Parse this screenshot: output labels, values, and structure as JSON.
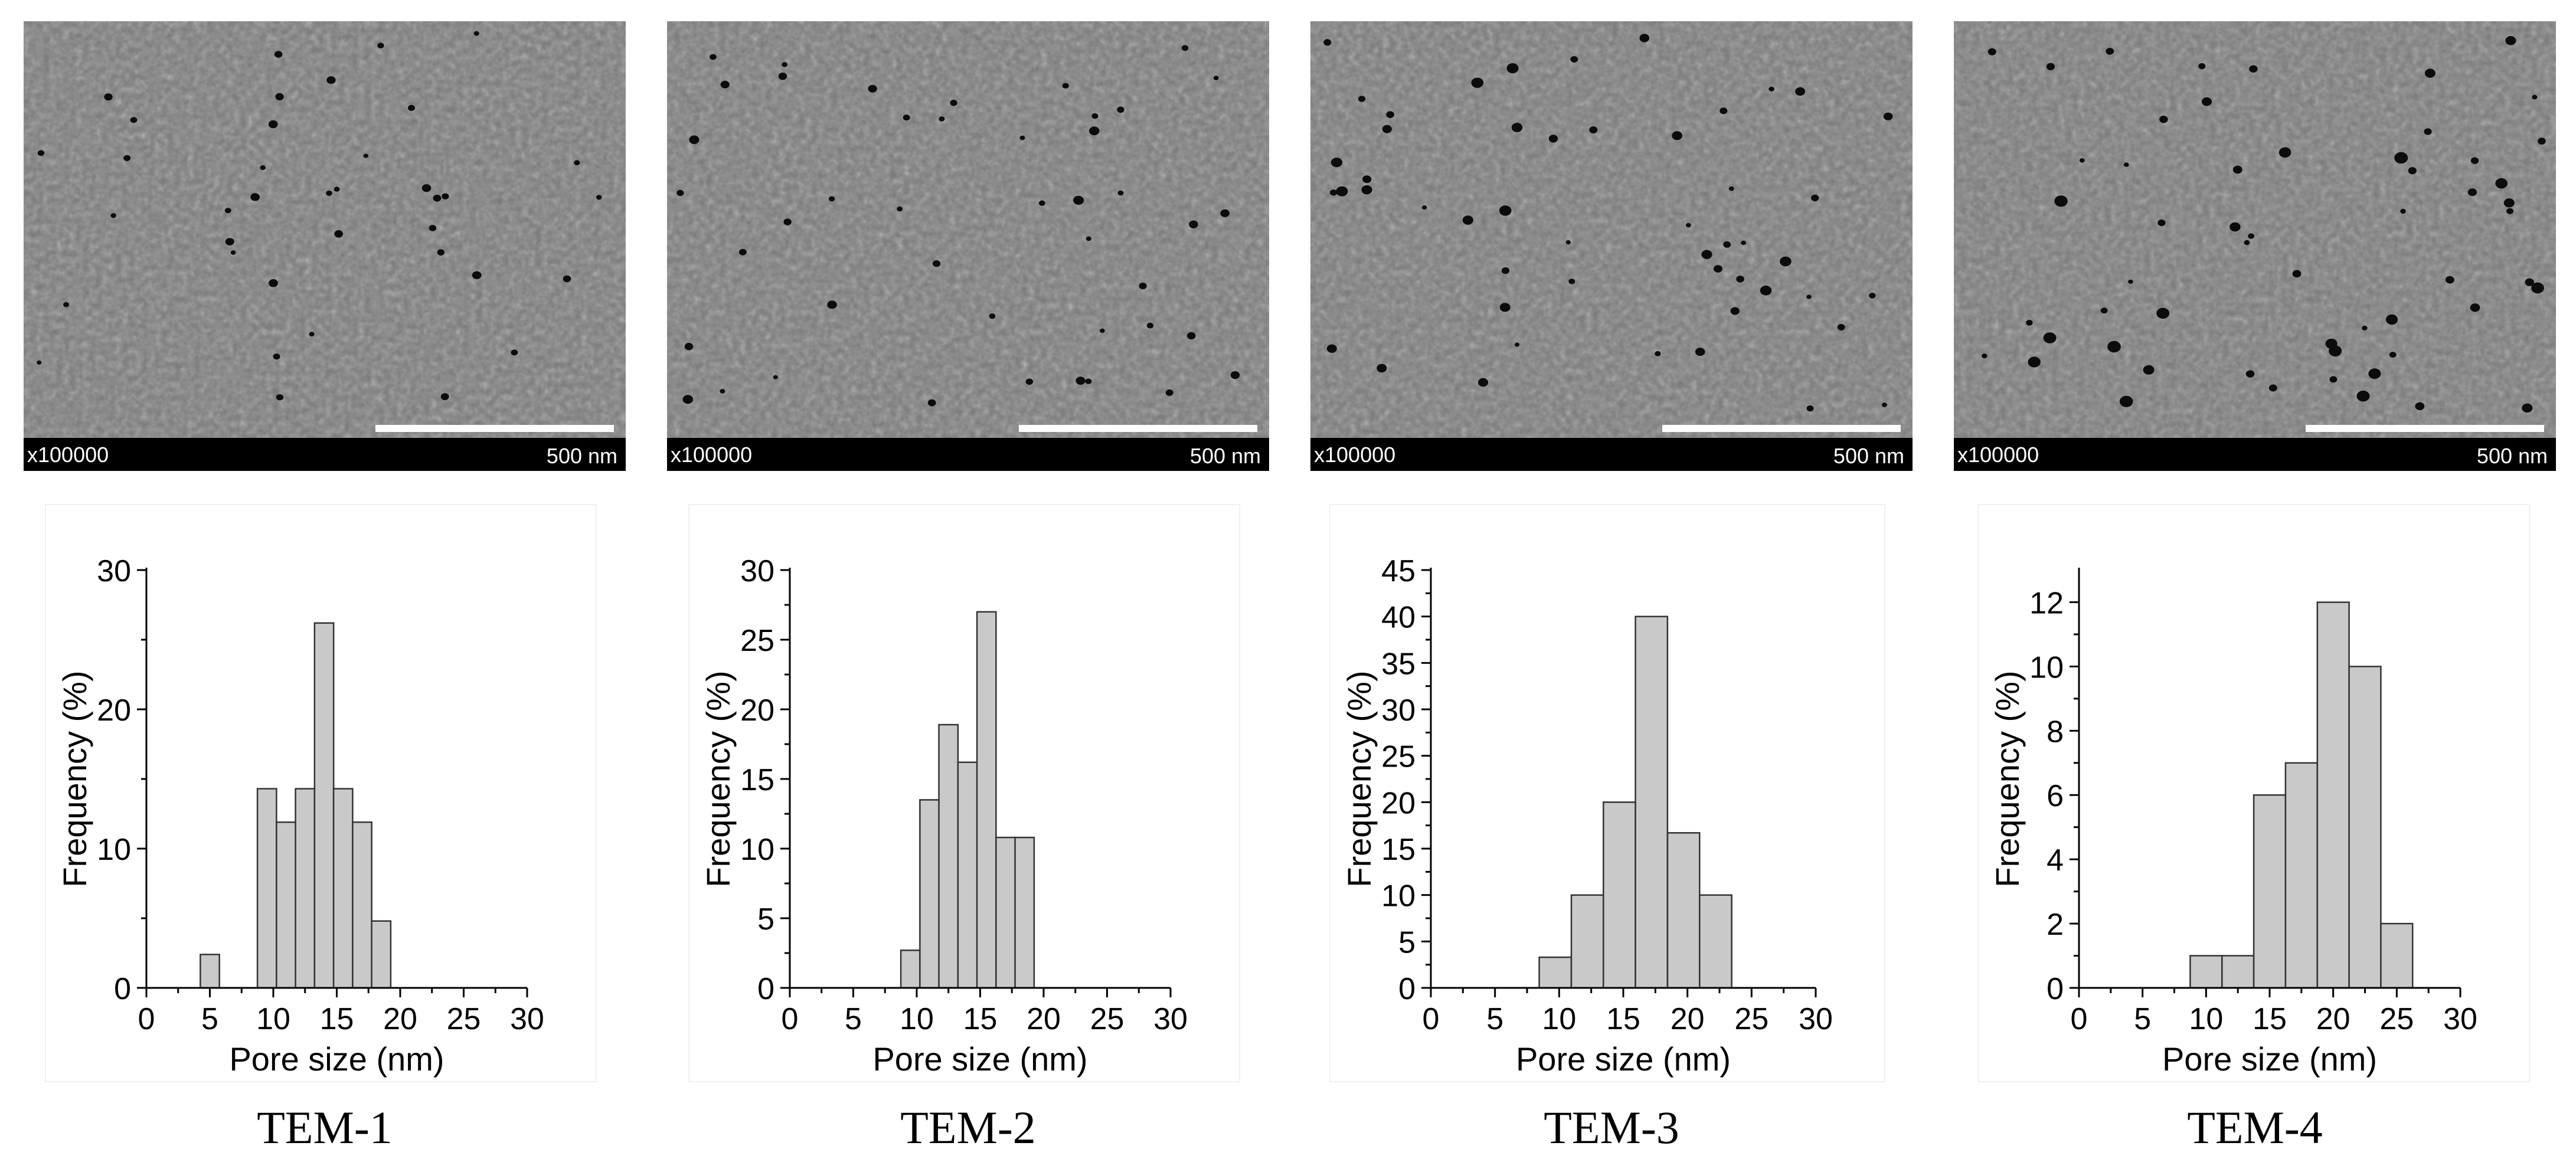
{
  "panels": [
    {
      "caption": "TEM-1",
      "magnification": "x100000",
      "scale_label": "500 nm"
    },
    {
      "caption": "TEM-2",
      "magnification": "x100000",
      "scale_label": "500 nm"
    },
    {
      "caption": "TEM-3",
      "magnification": "x100000",
      "scale_label": "500 nm"
    },
    {
      "caption": "TEM-4",
      "magnification": "x100000",
      "scale_label": "500 nm"
    }
  ],
  "colors": {
    "bar_fill": "#c9c9c9",
    "bar_stroke": "#333333",
    "axis": "#000000"
  },
  "chart_data": [
    {
      "type": "bar",
      "title": "",
      "xlabel": "Pore size (nm)",
      "ylabel": "Frequency (%)",
      "xlim": [
        0,
        30
      ],
      "ylim": [
        0,
        30
      ],
      "xticks": [
        0,
        5,
        10,
        15,
        20,
        25,
        30
      ],
      "yticks": [
        0,
        10,
        20,
        30
      ],
      "bin_width": 1.5,
      "bins": [
        {
          "x": 5,
          "y": 2.4
        },
        {
          "x": 9.5,
          "y": 14.3
        },
        {
          "x": 11,
          "y": 11.9
        },
        {
          "x": 12.5,
          "y": 14.3
        },
        {
          "x": 14,
          "y": 26.2
        },
        {
          "x": 15.5,
          "y": 14.3
        },
        {
          "x": 17,
          "y": 11.9
        },
        {
          "x": 18.5,
          "y": 4.8
        }
      ]
    },
    {
      "type": "bar",
      "title": "",
      "xlabel": "Pore size (nm)",
      "ylabel": "Frequency (%)",
      "xlim": [
        0,
        30
      ],
      "ylim": [
        0,
        30
      ],
      "xticks": [
        0,
        5,
        10,
        15,
        20,
        25,
        30
      ],
      "yticks": [
        0,
        5,
        10,
        15,
        20,
        25,
        30
      ],
      "bin_width": 1.5,
      "bins": [
        {
          "x": 9.5,
          "y": 2.7
        },
        {
          "x": 11,
          "y": 13.5
        },
        {
          "x": 12.5,
          "y": 18.9
        },
        {
          "x": 14,
          "y": 16.2
        },
        {
          "x": 15.5,
          "y": 27
        },
        {
          "x": 17,
          "y": 10.8
        },
        {
          "x": 18.5,
          "y": 10.8
        }
      ]
    },
    {
      "type": "bar",
      "title": "",
      "xlabel": "Pore size (nm)",
      "ylabel": "Frequency (%)",
      "xlim": [
        0,
        30
      ],
      "ylim": [
        0,
        45
      ],
      "xticks": [
        0,
        5,
        10,
        15,
        20,
        25,
        30
      ],
      "yticks": [
        0,
        5,
        10,
        15,
        20,
        25,
        30,
        35,
        40,
        45
      ],
      "bin_width": 2.5,
      "bins": [
        {
          "x": 9.7,
          "y": 3.3
        },
        {
          "x": 12.2,
          "y": 10
        },
        {
          "x": 14.7,
          "y": 20
        },
        {
          "x": 17.2,
          "y": 40
        },
        {
          "x": 19.7,
          "y": 16.7
        },
        {
          "x": 22.2,
          "y": 10
        }
      ]
    },
    {
      "type": "bar",
      "title": "",
      "xlabel": "Pore size (nm)",
      "ylabel": "Frequency (%)",
      "xlim": [
        0,
        30
      ],
      "ylim": [
        0,
        13
      ],
      "xticks": [
        0,
        5,
        10,
        15,
        20,
        25,
        30
      ],
      "yticks": [
        0,
        2,
        4,
        6,
        8,
        10,
        12
      ],
      "bin_width": 2.5,
      "bins": [
        {
          "x": 10,
          "y": 1
        },
        {
          "x": 12.5,
          "y": 1
        },
        {
          "x": 15,
          "y": 6
        },
        {
          "x": 17.5,
          "y": 7
        },
        {
          "x": 20,
          "y": 12
        },
        {
          "x": 22.5,
          "y": 10
        },
        {
          "x": 25,
          "y": 2
        }
      ]
    }
  ]
}
